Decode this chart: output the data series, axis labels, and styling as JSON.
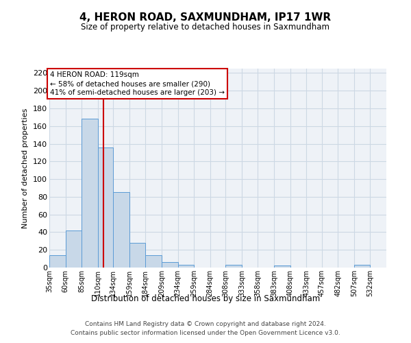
{
  "title": "4, HERON ROAD, SAXMUNDHAM, IP17 1WR",
  "subtitle": "Size of property relative to detached houses in Saxmundham",
  "xlabel": "Distribution of detached houses by size in Saxmundham",
  "ylabel": "Number of detached properties",
  "footer_line1": "Contains HM Land Registry data © Crown copyright and database right 2024.",
  "footer_line2": "Contains public sector information licensed under the Open Government Licence v3.0.",
  "bin_labels": [
    "35sqm",
    "60sqm",
    "85sqm",
    "110sqm",
    "134sqm",
    "159sqm",
    "184sqm",
    "209sqm",
    "234sqm",
    "259sqm",
    "284sqm",
    "308sqm",
    "333sqm",
    "358sqm",
    "383sqm",
    "408sqm",
    "433sqm",
    "457sqm",
    "482sqm",
    "507sqm",
    "532sqm"
  ],
  "bar_heights": [
    14,
    42,
    168,
    136,
    85,
    28,
    14,
    6,
    3,
    0,
    0,
    3,
    0,
    0,
    2,
    0,
    0,
    0,
    0,
    3,
    0
  ],
  "bar_color": "#c8d8e8",
  "bar_edgecolor": "#5b9bd5",
  "vline_x": 119,
  "vline_color": "#cc0000",
  "vline_label": "4 HERON ROAD: 119sqm",
  "annotation_line2": "← 58% of detached houses are smaller (290)",
  "annotation_line3": "41% of semi-detached houses are larger (203) →",
  "annotation_box_edgecolor": "#cc0000",
  "ylim": [
    0,
    225
  ],
  "yticks": [
    0,
    20,
    40,
    60,
    80,
    100,
    120,
    140,
    160,
    180,
    200,
    220
  ],
  "bin_edges": [
    35,
    60,
    85,
    110,
    134,
    159,
    184,
    209,
    234,
    259,
    284,
    308,
    333,
    358,
    383,
    408,
    433,
    457,
    482,
    507,
    532,
    557
  ],
  "bg_color": "#eef2f7",
  "grid_color": "#ccd8e4",
  "fig_width": 6.0,
  "fig_height": 5.0,
  "fig_dpi": 100
}
